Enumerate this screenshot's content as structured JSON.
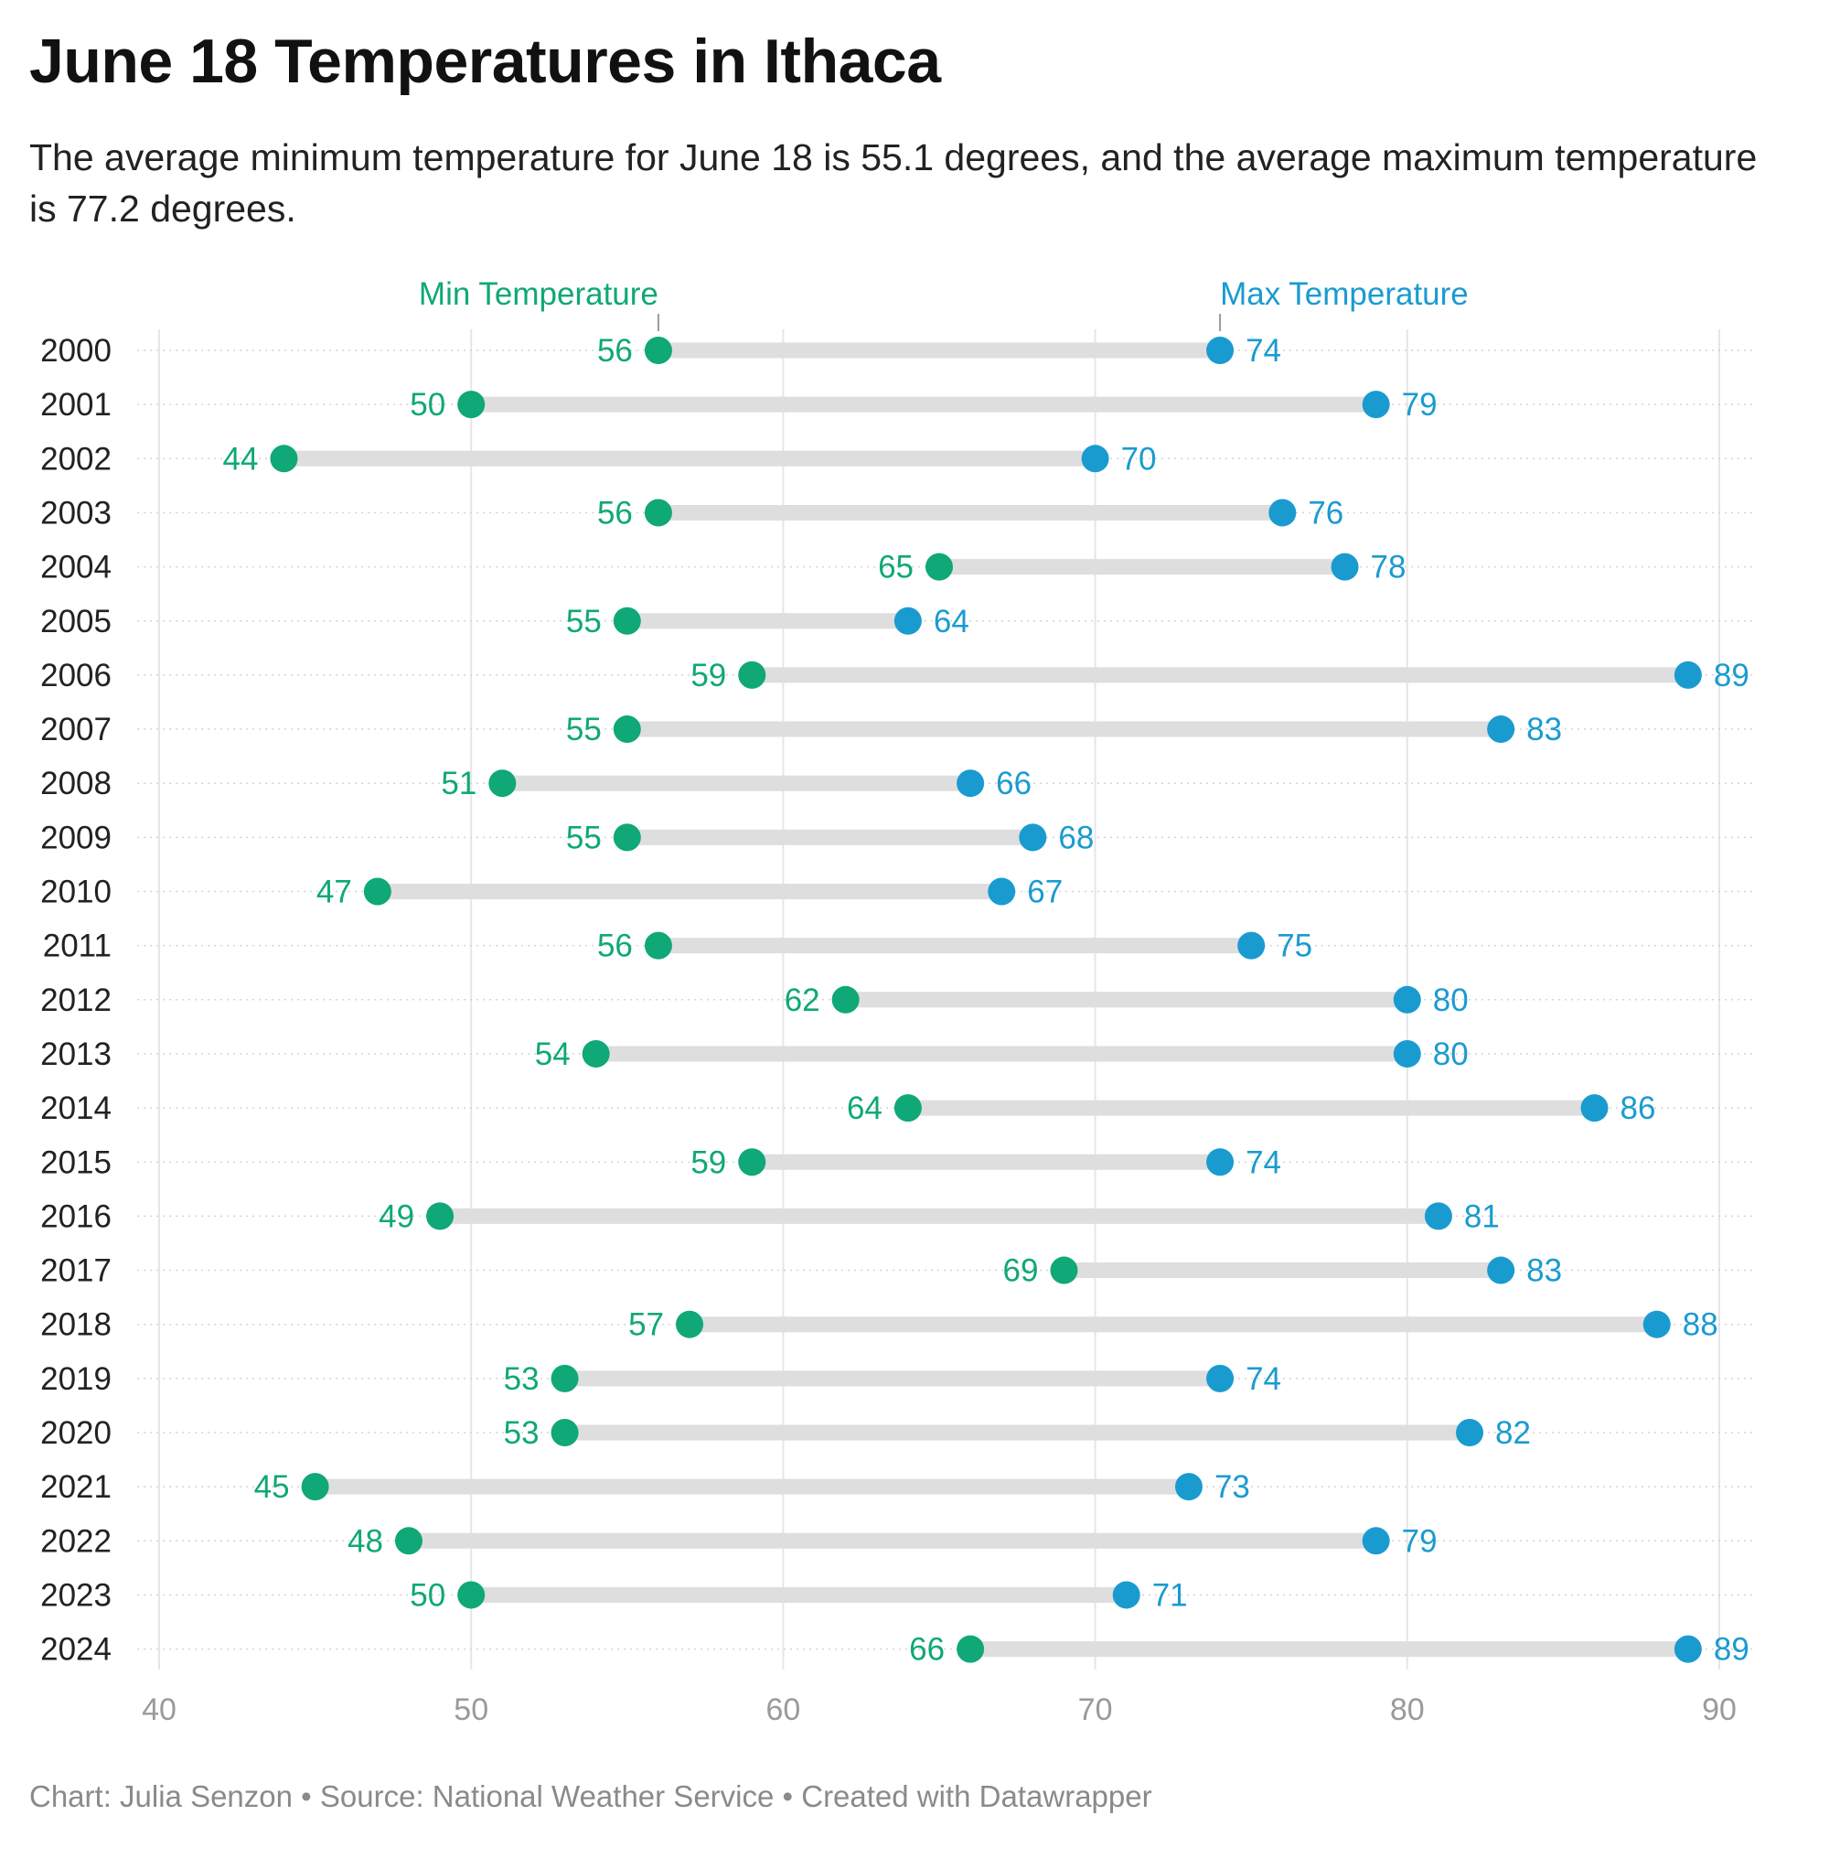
{
  "title": "June 18 Temperatures in Ithaca",
  "subtitle": "The average minimum temperature for June 18 is 55.1 degrees, and the average maximum temperature is 77.2 degrees.",
  "footer": "Chart: Julia Senzon • Source: National Weather Service • Created with Datawrapper",
  "colors": {
    "min": "#0fa876",
    "max": "#1a9bd0",
    "bar": "#dedede",
    "grid": "#e6e6e6"
  },
  "chart_data": {
    "type": "dumbbell",
    "categories": [
      "2000",
      "2001",
      "2002",
      "2003",
      "2004",
      "2005",
      "2006",
      "2007",
      "2008",
      "2009",
      "2010",
      "2011",
      "2012",
      "2013",
      "2014",
      "2015",
      "2016",
      "2017",
      "2018",
      "2019",
      "2020",
      "2021",
      "2022",
      "2023",
      "2024"
    ],
    "series": [
      {
        "name": "Min Temperature",
        "values": [
          56,
          50,
          44,
          56,
          65,
          55,
          59,
          55,
          51,
          55,
          47,
          56,
          62,
          54,
          64,
          59,
          49,
          69,
          57,
          53,
          53,
          45,
          48,
          50,
          66
        ]
      },
      {
        "name": "Max Temperature",
        "values": [
          74,
          79,
          70,
          76,
          78,
          64,
          89,
          83,
          66,
          68,
          67,
          75,
          80,
          80,
          86,
          74,
          81,
          83,
          88,
          74,
          82,
          73,
          79,
          71,
          89
        ]
      }
    ],
    "xlim": [
      40,
      90
    ],
    "xticks": [
      40,
      50,
      60,
      70,
      80,
      90
    ],
    "xlabel": "",
    "ylabel": "",
    "grid": "vertical",
    "legend": "top, labels above first row"
  }
}
